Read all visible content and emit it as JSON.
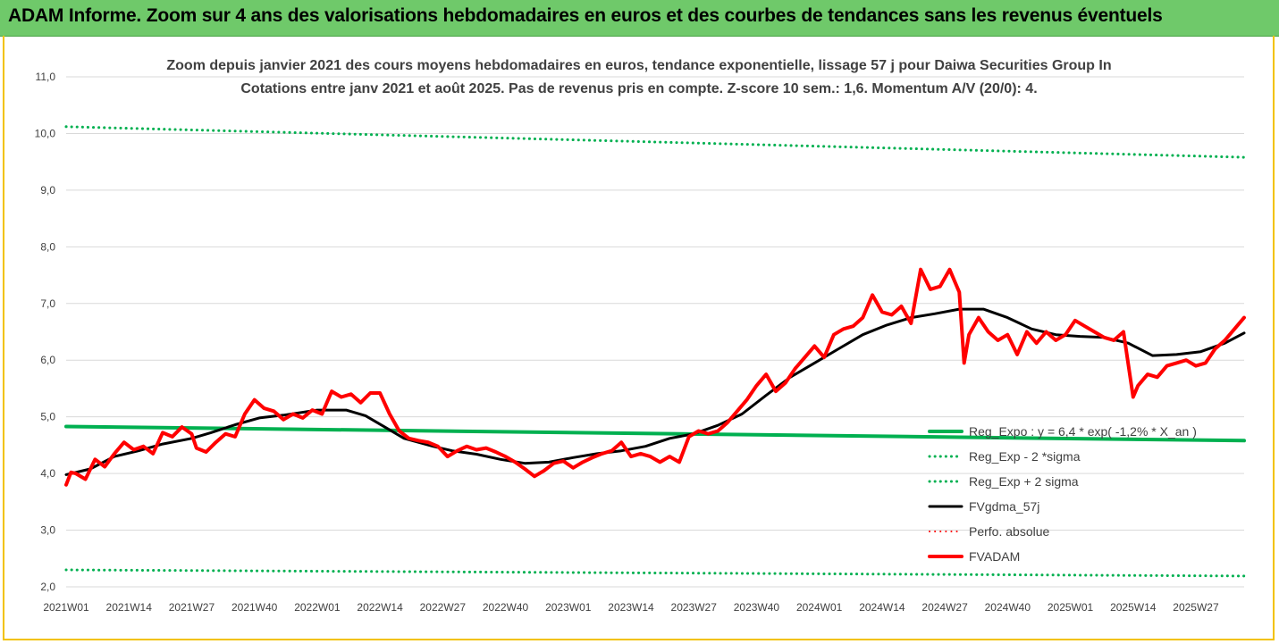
{
  "banner": {
    "title": "ADAM Informe. Zoom sur 4 ans des valorisations hebdomadaires en euros et des courbes de tendances sans les revenus éventuels",
    "color": "#6fc96a"
  },
  "chart_data": {
    "type": "line",
    "title": "Zoom depuis janvier 2021 des cours moyens hebdomadaires en euros, tendance exponentielle, lissage 57 j pour Daiwa Securities Group In",
    "subtitle": "Cotations entre janv 2021 et août 2025.  Pas de revenus pris en compte. Z-score 10 sem.: 1,6. Momentum A/V (20/0): 4.",
    "xlabel": "",
    "ylabel": "",
    "ylim": [
      2.0,
      11.0
    ],
    "y_ticks": [
      "2,0",
      "3,0",
      "4,0",
      "5,0",
      "6,0",
      "7,0",
      "8,0",
      "9,0",
      "10,0",
      "11,0"
    ],
    "x_ticks": [
      "2021W01",
      "2021W14",
      "2021W27",
      "2021W40",
      "2022W01",
      "2022W14",
      "2022W27",
      "2022W40",
      "2023W01",
      "2023W14",
      "2023W27",
      "2023W40",
      "2024W01",
      "2024W14",
      "2024W27",
      "2024W40",
      "2025W01",
      "2025W14",
      "2025W27"
    ],
    "x_tick_index": [
      0,
      13,
      26,
      39,
      52,
      65,
      78,
      91,
      104,
      117,
      130,
      143,
      156,
      169,
      182,
      195,
      208,
      221,
      234
    ],
    "n_weeks": 245,
    "legend_position": "right",
    "series": [
      {
        "name": "Reg_Expo : y = 6,4 * exp( -1,2% * X_an )",
        "color": "#00b050",
        "style": "solid",
        "width": 4,
        "x": [
          0,
          244
        ],
        "values": [
          4.83,
          4.58
        ]
      },
      {
        "name": "Reg_Exp - 2 *sigma",
        "color": "#00b050",
        "style": "dotted",
        "width": 3,
        "x": [
          0,
          244
        ],
        "values": [
          2.3,
          2.19
        ]
      },
      {
        "name": "Reg_Exp + 2 sigma",
        "color": "#00b050",
        "style": "dotted",
        "width": 3,
        "x": [
          0,
          244
        ],
        "values": [
          10.12,
          9.58
        ]
      },
      {
        "name": "FVgdma_57j",
        "color": "#000000",
        "style": "solid",
        "width": 3,
        "x": [
          0,
          5,
          10,
          15,
          20,
          26,
          30,
          35,
          40,
          45,
          52,
          58,
          62,
          66,
          70,
          76,
          80,
          85,
          90,
          95,
          100,
          105,
          110,
          115,
          120,
          125,
          130,
          135,
          140,
          145,
          150,
          155,
          160,
          165,
          170,
          175,
          180,
          185,
          190,
          195,
          200,
          205,
          210,
          215,
          220,
          225,
          230,
          235,
          240,
          244
        ],
        "values": [
          3.98,
          4.08,
          4.3,
          4.4,
          4.52,
          4.62,
          4.72,
          4.86,
          4.98,
          5.03,
          5.12,
          5.12,
          5.02,
          4.82,
          4.62,
          4.48,
          4.4,
          4.34,
          4.25,
          4.18,
          4.2,
          4.28,
          4.35,
          4.4,
          4.48,
          4.62,
          4.7,
          4.85,
          5.05,
          5.38,
          5.7,
          5.95,
          6.2,
          6.45,
          6.62,
          6.75,
          6.82,
          6.9,
          6.9,
          6.75,
          6.55,
          6.45,
          6.42,
          6.4,
          6.3,
          6.08,
          6.1,
          6.15,
          6.3,
          6.48
        ]
      },
      {
        "name": "Perfo. absolue",
        "color": "#ff0000",
        "style": "dotted",
        "width": 2,
        "x": [],
        "values": []
      },
      {
        "name": "FVADAM",
        "color": "#ff0000",
        "style": "solid",
        "width": 4,
        "x": [
          0,
          1,
          2,
          4,
          6,
          8,
          10,
          12,
          14,
          16,
          18,
          20,
          22,
          24,
          26,
          27,
          29,
          31,
          33,
          35,
          37,
          39,
          41,
          43,
          45,
          47,
          49,
          51,
          53,
          55,
          57,
          59,
          61,
          63,
          65,
          67,
          69,
          71,
          73,
          75,
          77,
          79,
          81,
          83,
          85,
          87,
          89,
          91,
          93,
          95,
          97,
          99,
          101,
          103,
          105,
          107,
          109,
          111,
          113,
          115,
          117,
          119,
          121,
          123,
          125,
          127,
          129,
          131,
          133,
          135,
          137,
          139,
          141,
          143,
          145,
          147,
          149,
          151,
          153,
          155,
          157,
          159,
          161,
          163,
          165,
          167,
          169,
          171,
          173,
          175,
          177,
          179,
          181,
          183,
          185,
          186,
          187,
          189,
          191,
          193,
          195,
          197,
          199,
          201,
          203,
          205,
          207,
          209,
          211,
          213,
          215,
          217,
          219,
          221,
          222,
          224,
          226,
          228,
          230,
          232,
          234,
          236,
          238,
          240,
          242,
          244
        ],
        "values": [
          3.8,
          4.02,
          4.0,
          3.9,
          4.25,
          4.12,
          4.35,
          4.55,
          4.42,
          4.48,
          4.35,
          4.72,
          4.65,
          4.82,
          4.7,
          4.45,
          4.38,
          4.55,
          4.7,
          4.65,
          5.05,
          5.3,
          5.15,
          5.1,
          4.95,
          5.05,
          4.98,
          5.12,
          5.05,
          5.45,
          5.35,
          5.4,
          5.25,
          5.42,
          5.42,
          5.05,
          4.75,
          4.62,
          4.58,
          4.55,
          4.48,
          4.3,
          4.4,
          4.48,
          4.42,
          4.45,
          4.38,
          4.3,
          4.2,
          4.08,
          3.95,
          4.05,
          4.18,
          4.22,
          4.1,
          4.2,
          4.28,
          4.35,
          4.4,
          4.55,
          4.3,
          4.35,
          4.3,
          4.2,
          4.3,
          4.2,
          4.65,
          4.75,
          4.7,
          4.75,
          4.9,
          5.1,
          5.3,
          5.55,
          5.75,
          5.45,
          5.6,
          5.85,
          6.05,
          6.25,
          6.05,
          6.45,
          6.55,
          6.6,
          6.75,
          7.15,
          6.85,
          6.8,
          6.95,
          6.65,
          7.6,
          7.25,
          7.3,
          7.6,
          7.2,
          5.95,
          6.45,
          6.75,
          6.5,
          6.35,
          6.45,
          6.1,
          6.5,
          6.3,
          6.5,
          6.35,
          6.45,
          6.7,
          6.6,
          6.5,
          6.4,
          6.35,
          6.5,
          5.35,
          5.55,
          5.75,
          5.7,
          5.9,
          5.95,
          6.0,
          5.9,
          5.95,
          6.2,
          6.35,
          6.55,
          6.75
        ]
      }
    ]
  }
}
